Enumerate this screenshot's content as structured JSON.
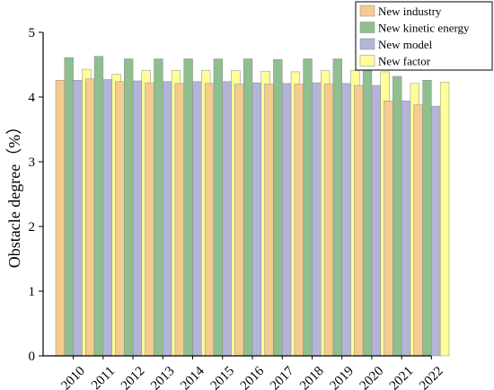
{
  "chart_data": {
    "type": "bar",
    "title": "",
    "xlabel": "",
    "ylabel": "Obstacle degree（%）",
    "ylim": [
      0,
      5
    ],
    "yticks": [
      0,
      1,
      2,
      3,
      4,
      5
    ],
    "grid": false,
    "legend_position": "top-right",
    "categories": [
      "2010",
      "2011",
      "2012",
      "2013",
      "2014",
      "2015",
      "2016",
      "2017",
      "2018",
      "2019",
      "2020",
      "2021",
      "2022"
    ],
    "series": [
      {
        "name": "New industry",
        "color": "#f4cc8f",
        "values": [
          4.26,
          4.28,
          4.24,
          4.22,
          4.21,
          4.21,
          4.2,
          4.2,
          4.2,
          4.2,
          4.18,
          3.94,
          3.88
        ]
      },
      {
        "name": "New kinetic energy",
        "color": "#8fbf8f",
        "values": [
          4.61,
          4.63,
          4.59,
          4.59,
          4.59,
          4.59,
          4.59,
          4.58,
          4.59,
          4.59,
          4.56,
          4.32,
          4.26
        ]
      },
      {
        "name": "New model",
        "color": "#b4b4d8",
        "values": [
          4.26,
          4.27,
          4.25,
          4.24,
          4.24,
          4.24,
          4.22,
          4.21,
          4.22,
          4.21,
          4.18,
          3.94,
          3.86
        ]
      },
      {
        "name": "New factor",
        "color": "#ffff99",
        "values": [
          4.43,
          4.35,
          4.41,
          4.41,
          4.41,
          4.41,
          4.4,
          4.39,
          4.41,
          4.41,
          4.39,
          4.21,
          4.23
        ]
      }
    ]
  }
}
